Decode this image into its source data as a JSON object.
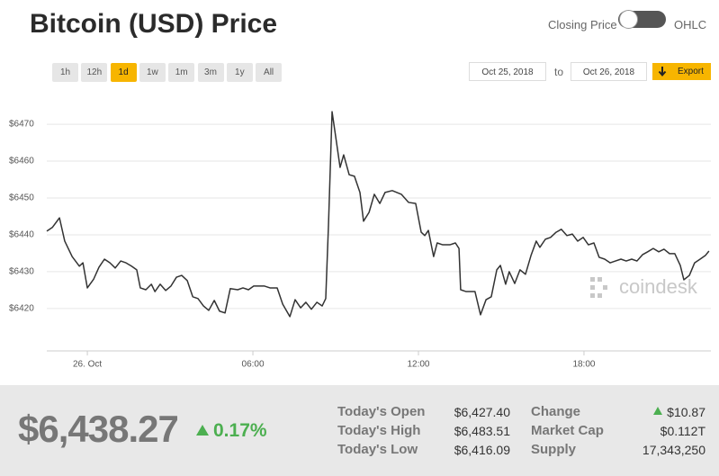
{
  "header": {
    "title": "Bitcoin (USD) Price",
    "toggle_left": "Closing Price",
    "toggle_right": "OHLC"
  },
  "range_buttons": [
    "1h",
    "12h",
    "1d",
    "1w",
    "1m",
    "3m",
    "1y",
    "All"
  ],
  "active_range": 2,
  "date_range": {
    "from": "Oct 25, 2018",
    "separator": "to",
    "to": "Oct 26, 2018",
    "export": "Export"
  },
  "watermark": "coindesk",
  "summary": {
    "price": "$6,438.27",
    "change_pct": "0.17%"
  },
  "stats": [
    {
      "label": "Today's Open",
      "value": "$6,427.40"
    },
    {
      "label": "Today's High",
      "value": "$6,483.51"
    },
    {
      "label": "Today's Low",
      "value": "$6,416.09"
    },
    {
      "label": "Change",
      "value": "$10.87"
    },
    {
      "label": "Market Cap",
      "value": "$0.112T"
    },
    {
      "label": "Supply",
      "value": "17,343,250"
    }
  ],
  "chart_data": {
    "type": "line",
    "color": "#333333",
    "grid": true,
    "xlim": [
      -1.47,
      22.6
    ],
    "ylim": [
      6408.5,
      6479.3
    ],
    "xticks": [
      {
        "value": 0,
        "label": "26. Oct"
      },
      {
        "value": 6,
        "label": "06:00"
      },
      {
        "value": 12,
        "label": "12:00"
      },
      {
        "value": 18,
        "label": "18:00"
      }
    ],
    "yticks": [
      {
        "value": 6420,
        "label": "$6420"
      },
      {
        "value": 6430,
        "label": "$6430"
      },
      {
        "value": 6440,
        "label": "$6440"
      },
      {
        "value": 6450,
        "label": "$6450"
      },
      {
        "value": 6460,
        "label": "$6460"
      },
      {
        "value": 6470,
        "label": "$6470"
      }
    ],
    "x": [
      -1.47,
      -1.27,
      -1.01,
      -0.82,
      -0.55,
      -0.29,
      -0.16,
      0.0,
      0.23,
      0.42,
      0.62,
      0.82,
      1.01,
      1.21,
      1.4,
      1.6,
      1.79,
      1.92,
      2.12,
      2.32,
      2.45,
      2.64,
      2.84,
      3.03,
      3.23,
      3.42,
      3.62,
      3.82,
      4.01,
      4.21,
      4.4,
      4.6,
      4.79,
      4.99,
      5.18,
      5.45,
      5.64,
      5.84,
      6.03,
      6.23,
      6.42,
      6.62,
      6.88,
      7.08,
      7.34,
      7.53,
      7.73,
      7.92,
      8.12,
      8.32,
      8.51,
      8.64,
      8.74,
      8.87,
      9.03,
      9.16,
      9.29,
      9.49,
      9.68,
      9.88,
      10.01,
      10.21,
      10.4,
      10.6,
      10.79,
      11.05,
      11.38,
      11.64,
      11.9,
      12.1,
      12.23,
      12.36,
      12.55,
      12.68,
      12.88,
      13.14,
      13.34,
      13.47,
      13.53,
      13.73,
      14.05,
      14.25,
      14.45,
      14.64,
      14.84,
      14.97,
      15.16,
      15.29,
      15.49,
      15.68,
      15.88,
      16.08,
      16.27,
      16.4,
      16.6,
      16.79,
      16.99,
      17.18,
      17.38,
      17.58,
      17.77,
      17.97,
      18.16,
      18.36,
      18.55,
      18.75,
      18.95,
      19.14,
      19.34,
      19.53,
      19.73,
      19.92,
      20.12,
      20.31,
      20.51,
      20.71,
      20.9,
      21.1,
      21.29,
      21.49,
      21.62,
      21.82,
      22.01,
      22.21,
      22.4,
      22.53
    ],
    "values": [
      6441.0,
      6442.0,
      6444.6,
      6438.3,
      6434.1,
      6431.5,
      6432.4,
      6425.6,
      6428.0,
      6431.2,
      6433.4,
      6432.4,
      6431.0,
      6432.9,
      6432.4,
      6431.5,
      6430.5,
      6425.6,
      6425.1,
      6426.6,
      6424.6,
      6426.6,
      6424.9,
      6426.1,
      6428.5,
      6429.0,
      6427.6,
      6423.2,
      6422.7,
      6420.7,
      6419.5,
      6422.2,
      6419.3,
      6418.8,
      6425.4,
      6425.1,
      6425.6,
      6425.1,
      6426.1,
      6426.1,
      6426.1,
      6425.6,
      6425.6,
      6421.2,
      6417.8,
      6422.4,
      6420.2,
      6421.7,
      6419.8,
      6421.7,
      6420.7,
      6422.7,
      6442.7,
      6473.4,
      6465.1,
      6458.3,
      6461.7,
      6456.3,
      6455.9,
      6451.5,
      6443.7,
      6446.1,
      6451.0,
      6448.5,
      6451.5,
      6452.0,
      6451.0,
      6448.8,
      6448.5,
      6440.7,
      6439.8,
      6441.2,
      6434.1,
      6437.8,
      6437.3,
      6437.3,
      6437.8,
      6436.3,
      6425.1,
      6424.6,
      6424.6,
      6418.3,
      6422.4,
      6423.2,
      6430.5,
      6431.7,
      6426.6,
      6430.0,
      6426.8,
      6430.5,
      6429.3,
      6434.4,
      6438.3,
      6436.6,
      6438.8,
      6439.3,
      6440.7,
      6441.5,
      6439.8,
      6440.2,
      6438.3,
      6439.3,
      6437.3,
      6437.8,
      6433.9,
      6433.4,
      6432.4,
      6432.9,
      6433.4,
      6432.9,
      6433.4,
      6432.9,
      6434.6,
      6435.4,
      6436.3,
      6435.4,
      6436.1,
      6434.9,
      6434.9,
      6431.7,
      6427.8,
      6429.0,
      6432.4,
      6433.4,
      6434.4,
      6435.6
    ]
  }
}
